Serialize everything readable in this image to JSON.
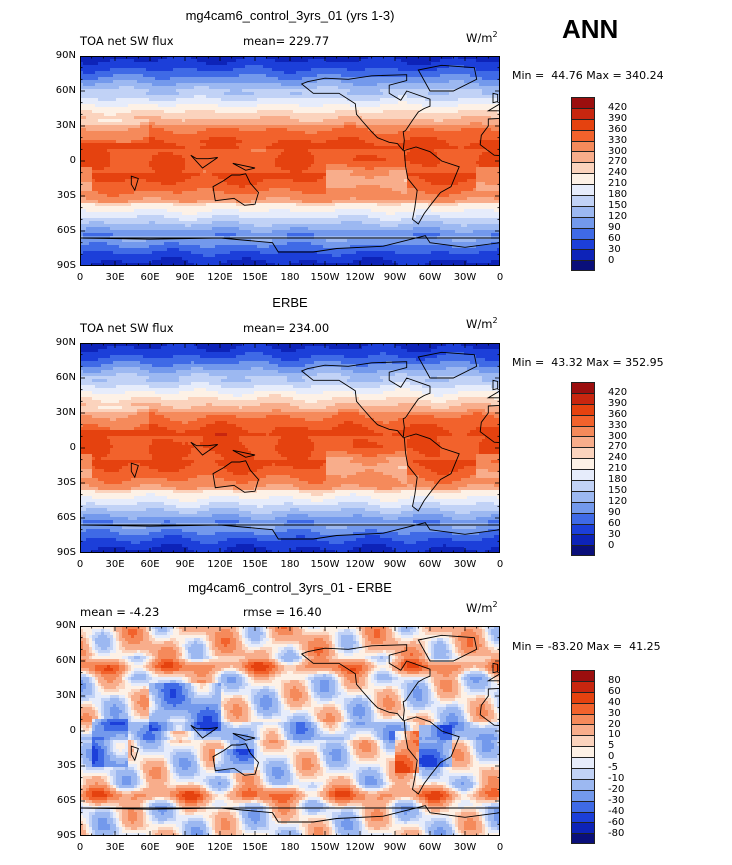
{
  "header": {
    "season": "ANN"
  },
  "panels": [
    {
      "title": "mg4cam6_control_3yrs_01 (yrs 1-3)",
      "left_label": "TOA net SW flux",
      "stat1": "mean= 229.77",
      "stat2": "",
      "units": "W/m",
      "units_sup": "2",
      "minmax": "Min =  44.76 Max = 340.24",
      "legend_labels": [
        "420",
        "390",
        "360",
        "330",
        "300",
        "270",
        "240",
        "210",
        "180",
        "150",
        "120",
        "90",
        "60",
        "30",
        "0"
      ],
      "legend_colors": [
        "#9b0e0e",
        "#c8260f",
        "#e5420f",
        "#f2622c",
        "#f58a5b",
        "#f8ad8b",
        "#fbd3bd",
        "#fdf1e6",
        "#e6ecfb",
        "#c1d2f6",
        "#9cb8f1",
        "#7399ec",
        "#3f6ae6",
        "#1c3fd9",
        "#0d23b8",
        "#0a0f7a"
      ],
      "palette": "full"
    },
    {
      "title": "ERBE",
      "left_label": "TOA net SW flux",
      "stat1": "mean= 234.00",
      "stat2": "",
      "units": "W/m",
      "units_sup": "2",
      "minmax": "Min =  43.32 Max = 352.95",
      "legend_labels": [
        "420",
        "390",
        "360",
        "330",
        "300",
        "270",
        "240",
        "210",
        "180",
        "150",
        "120",
        "90",
        "60",
        "30",
        "0"
      ],
      "legend_colors": [
        "#9b0e0e",
        "#c8260f",
        "#e5420f",
        "#f2622c",
        "#f58a5b",
        "#f8ad8b",
        "#fbd3bd",
        "#fdf1e6",
        "#e6ecfb",
        "#c1d2f6",
        "#9cb8f1",
        "#7399ec",
        "#3f6ae6",
        "#1c3fd9",
        "#0d23b8",
        "#0a0f7a"
      ],
      "palette": "full"
    },
    {
      "title": "mg4cam6_control_3yrs_01 - ERBE",
      "left_label": "mean =  -4.23",
      "stat1": "rmse =  16.40",
      "stat2": "",
      "units": "W/m",
      "units_sup": "2",
      "minmax": "Min = -83.20 Max =  41.25",
      "legend_labels": [
        "80",
        "60",
        "40",
        "30",
        "20",
        "10",
        "5",
        "0",
        "-5",
        "-10",
        "-20",
        "-30",
        "-40",
        "-60",
        "-80"
      ],
      "legend_colors": [
        "#9b0e0e",
        "#c8260f",
        "#e5420f",
        "#f2622c",
        "#f58a5b",
        "#f8ad8b",
        "#fbd3bd",
        "#fdf1e6",
        "#e6ecfb",
        "#c1d2f6",
        "#9cb8f1",
        "#7399ec",
        "#3f6ae6",
        "#1c3fd9",
        "#0d23b8",
        "#0a0f7a"
      ],
      "palette": "diff"
    }
  ],
  "axes": {
    "x_ticks": [
      "0",
      "30E",
      "60E",
      "90E",
      "120E",
      "150E",
      "180",
      "150W",
      "120W",
      "90W",
      "60W",
      "30W",
      "0"
    ],
    "y_ticks": [
      "90N",
      "60N",
      "30N",
      "0",
      "30S",
      "60S",
      "90S"
    ]
  },
  "chart_data": [
    {
      "type": "heatmap",
      "title": "mg4cam6_control_3yrs_01 (yrs 1-3)",
      "variable": "TOA net SW flux",
      "units": "W/m2",
      "mean": 229.77,
      "min": 44.76,
      "max": 340.24,
      "x_range": [
        0,
        360
      ],
      "y_range": [
        -90,
        90
      ],
      "contour_levels": [
        0,
        30,
        60,
        90,
        120,
        150,
        180,
        210,
        240,
        270,
        300,
        330,
        360,
        390,
        420
      ]
    },
    {
      "type": "heatmap",
      "title": "ERBE",
      "variable": "TOA net SW flux",
      "units": "W/m2",
      "mean": 234.0,
      "min": 43.32,
      "max": 352.95,
      "x_range": [
        0,
        360
      ],
      "y_range": [
        -90,
        90
      ],
      "contour_levels": [
        0,
        30,
        60,
        90,
        120,
        150,
        180,
        210,
        240,
        270,
        300,
        330,
        360,
        390,
        420
      ]
    },
    {
      "type": "heatmap",
      "title": "mg4cam6_control_3yrs_01 - ERBE",
      "units": "W/m2",
      "mean": -4.23,
      "rmse": 16.4,
      "min": -83.2,
      "max": 41.25,
      "x_range": [
        0,
        360
      ],
      "y_range": [
        -90,
        90
      ],
      "contour_levels": [
        -80,
        -60,
        -40,
        -30,
        -20,
        -10,
        -5,
        0,
        5,
        10,
        20,
        30,
        40,
        60,
        80
      ]
    }
  ]
}
